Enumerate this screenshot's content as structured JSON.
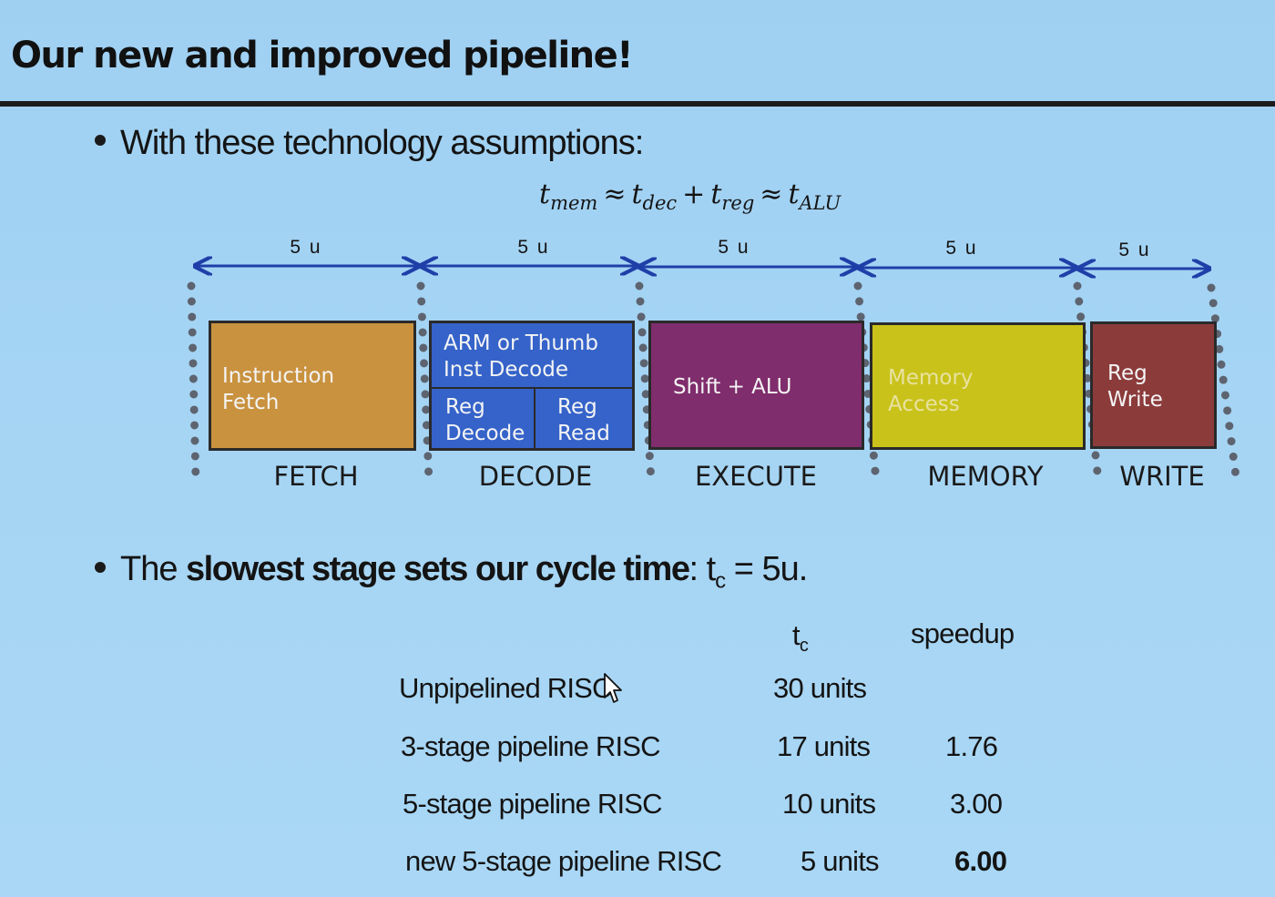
{
  "title": "Our new and improved pipeline!",
  "bullet1": "With these technology assumptions:",
  "formula": {
    "t1": "t",
    "s1": "mem",
    "op1": "≈",
    "t2": "t",
    "s2": "dec",
    "op2": "+",
    "t3": "t",
    "s3": "reg",
    "op3": "≈",
    "t4": "t",
    "s4": "ALU"
  },
  "durations": [
    "5 u",
    "5 u",
    "5 u",
    "5 u",
    "5 u"
  ],
  "colors": {
    "fetch": "#c9923f",
    "decode": "#3563c9",
    "execute": "#7f2d6c",
    "memory": "#c9c21a",
    "write": "#8c3b3b",
    "arrow": "#1f3fa8"
  },
  "stages": [
    {
      "name": "FETCH",
      "box": "Instruction\nFetch"
    },
    {
      "name": "DECODE",
      "box_top": "ARM or Thumb\nInst Decode",
      "box_left": "Reg\nDecode",
      "box_right": "Reg\nRead"
    },
    {
      "name": "EXECUTE",
      "box": "Shift + ALU"
    },
    {
      "name": "MEMORY",
      "box": "Memory\nAccess"
    },
    {
      "name": "WRITE",
      "box": "Reg\nWrite"
    }
  ],
  "bullet2": {
    "pre": "The ",
    "bold": "slowest stage sets our cycle time",
    "post": ": t",
    "sub": "c",
    "tail": " = 5u."
  },
  "table": {
    "header_tc": "t",
    "header_tc_sub": "c",
    "header_speedup": "speedup",
    "rows": [
      {
        "name": "Unpipelined RISC",
        "tc": "30 units",
        "speedup": ""
      },
      {
        "name": "3-stage pipeline RISC",
        "tc": "17 units",
        "speedup": "1.76"
      },
      {
        "name": "5-stage pipeline RISC",
        "tc": "10 units",
        "speedup": "3.00"
      },
      {
        "name": "new 5-stage pipeline RISC",
        "tc": "5 units",
        "speedup": "6.00"
      }
    ]
  }
}
